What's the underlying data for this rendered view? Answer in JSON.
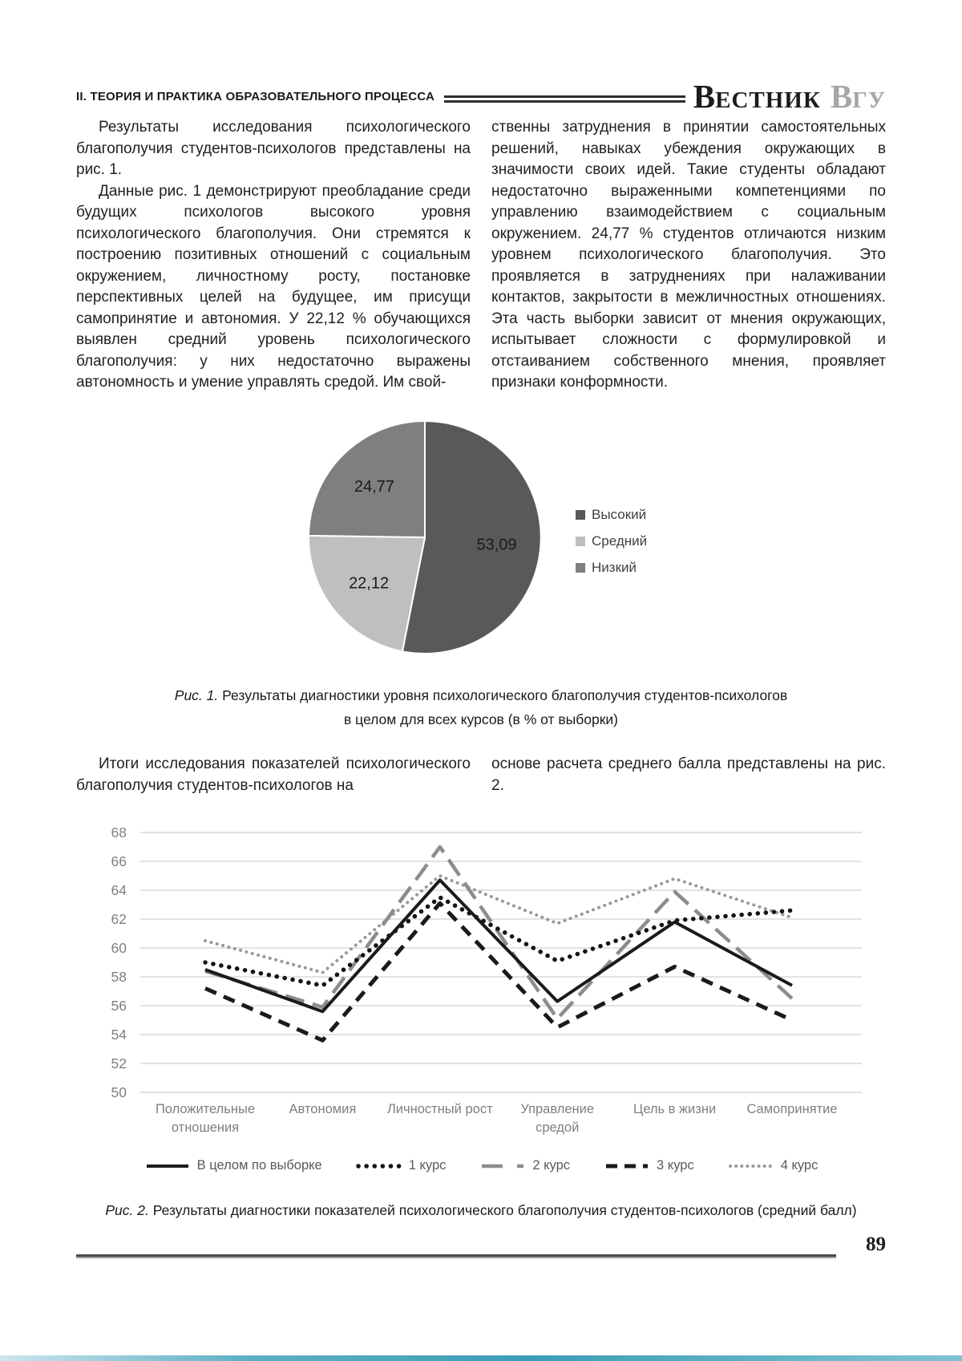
{
  "page": {
    "number": "89"
  },
  "header": {
    "section_title": "II. ТЕОРИЯ И ПРАКТИКА ОБРАЗОВАТЕЛЬНОГО ПРОЦЕССА",
    "logo": {
      "w1_cap": "В",
      "w1_rest": "ЕСТНИК",
      "w2_cap": "В",
      "w2_rest": "ГУ"
    }
  },
  "article": {
    "col1_p1": "Результаты исследования психологического благополучия студентов-психологов представлены на рис. 1.",
    "col1_p2": "Данные рис. 1 демонстрируют преобладание среди будущих психологов высокого уровня психологического благополучия. Они стремятся к построению позитивных отношений с социальным окружением, личностному росту, постановке перспективных целей на будущее, им присущи самопринятие и автономия. У 22,12 % обучающихся выявлен средний уровень психологического благополучия: у них недостаточно выражены автономность и умение управлять средой. Им свой-",
    "col2_p1": "ственны затруднения в принятии самостоятельных решений, навыках убеждения окружающих в значимости своих идей. Такие студенты обладают недостаточно выраженными компетенциями по управлению взаимодействием с социальным окружением. 24,77 % студентов отличаются низким уровнем психологического благополучия. Это проявляется в затруднениях при налаживании контактов, закрытости в межличностных отношениях. Эта часть выборки зависит от мнения окружающих, испытывает сложности с формулировкой и отстаиванием собственного мнения, проявляет признаки конформности.",
    "mid_col1": "Итоги исследования показателей психологического благополучия студентов-психологов на",
    "mid_col2": "основе расчета среднего балла представлены на рис. 2."
  },
  "fig1": {
    "label": "Рис. 1.",
    "line1": " Результаты диагностики уровня психологического благополучия студентов-психологов",
    "line2": "в целом для всех курсов (в % от выборки)"
  },
  "fig2": {
    "label": "Рис. 2.",
    "text": " Результаты диагностики показателей психологического благополучия студентов-психологов (средний балл)"
  },
  "chart_data": [
    {
      "type": "pie",
      "labels": [
        "Высокий",
        "Средний",
        "Низкий"
      ],
      "values": [
        53.09,
        22.12,
        24.77
      ],
      "value_labels": [
        "53,09",
        "22,12",
        "24,77"
      ],
      "colors": [
        "#595959",
        "#bfbfbf",
        "#7f7f7f"
      ],
      "start_angle_deg": 0,
      "direction": "clockwise",
      "legend_position": "right"
    },
    {
      "type": "line",
      "categories": [
        "Положительные отношения",
        "Автономия",
        "Личностный рост",
        "Управление средой",
        "Цель в жизни",
        "Самопринятие"
      ],
      "series": [
        {
          "name": "В целом по выборке",
          "values": [
            58.5,
            55.6,
            64.7,
            56.3,
            61.8,
            57.4
          ],
          "style": "solid",
          "color": "#1a1a1a"
        },
        {
          "name": "1 курс",
          "values": [
            59.0,
            57.4,
            63.5,
            59.1,
            61.9,
            62.6
          ],
          "style": "dot",
          "color": "#141414"
        },
        {
          "name": "2 курс",
          "values": [
            58.4,
            55.9,
            67.0,
            55.1,
            63.9,
            56.5
          ],
          "style": "long-dash",
          "color": "#8c8c8c"
        },
        {
          "name": "3 курс",
          "values": [
            57.2,
            53.6,
            63.1,
            54.5,
            58.7,
            55.0
          ],
          "style": "dash",
          "color": "#1a1a1a"
        },
        {
          "name": "4 курс",
          "values": [
            60.5,
            58.3,
            65.0,
            61.7,
            64.8,
            62.1
          ],
          "style": "fine-dot",
          "color": "#999999"
        }
      ],
      "ylim": [
        50,
        68
      ],
      "ytick_step": 2,
      "grid": true,
      "grid_color": "#d9d9d9",
      "axis_text_color": "#7f7f7f",
      "legend_position": "bottom"
    }
  ]
}
